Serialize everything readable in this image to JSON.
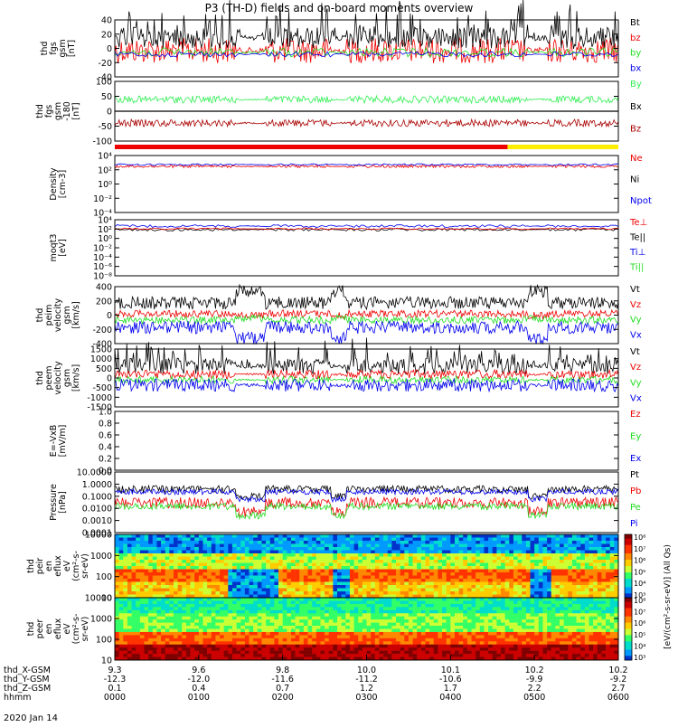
{
  "title": "P3 (TH-D) fields and on-board moments overview",
  "date_label": "2020 Jan 14",
  "colors": {
    "black": "#000000",
    "red": "#ee0000",
    "green": "#22dd22",
    "blue": "#0000ee",
    "dark_red": "#aa0000",
    "bright_green": "#33ee55",
    "yellow": "#ffee00"
  },
  "chart_data": [
    {
      "type": "line",
      "id": "fgs",
      "ylabel": [
        "thd",
        "fgs",
        "gsm",
        "[nT]"
      ],
      "ylim": [
        -40,
        40
      ],
      "yticks": [
        "40",
        "20",
        "0",
        "-20",
        "-40"
      ],
      "series": [
        {
          "name": "Bt",
          "color": "#000000"
        },
        {
          "name": "bz",
          "color": "#ee0000"
        },
        {
          "name": "by",
          "color": "#22dd22"
        },
        {
          "name": "bx",
          "color": "#0000ee"
        }
      ]
    },
    {
      "type": "line",
      "id": "fgs_offset",
      "ylabel": [
        "thd",
        "fgs",
        "gsm",
        "-180",
        "[nT]"
      ],
      "ylim": [
        -140,
        100
      ],
      "yticks": [
        "100",
        "50",
        "0",
        "-50",
        "-100"
      ],
      "series": [
        {
          "name": "By",
          "color": "#33ee55"
        },
        {
          "name": "Bx",
          "color": "#000000"
        },
        {
          "name": "Bz",
          "color": "#aa0000"
        }
      ]
    },
    {
      "type": "line",
      "id": "density",
      "ylabel": [
        "Density",
        "[cm-3]"
      ],
      "ylim_log": [
        -4,
        4
      ],
      "yticks": [
        "10⁴",
        "10²",
        "10⁰",
        "10⁻²",
        "10⁻⁴"
      ],
      "series": [
        {
          "name": "Ne",
          "color": "#ee0000"
        },
        {
          "name": "Ni",
          "color": "#000000"
        },
        {
          "name": "Npot",
          "color": "#0000ee"
        }
      ]
    },
    {
      "type": "line",
      "id": "temperature",
      "ylabel": [
        "moqt3",
        "[eV]"
      ],
      "ylim_log": [
        -8,
        4
      ],
      "yticks": [
        "10⁴",
        "10²",
        "10⁰",
        "10⁻²",
        "10⁻⁴",
        "10⁻⁶",
        "10⁻⁸"
      ],
      "series": [
        {
          "name": "Te⊥",
          "color": "#ee0000"
        },
        {
          "name": "Te||",
          "color": "#000000"
        },
        {
          "name": "Ti⊥",
          "color": "#0000ee"
        },
        {
          "name": "Ti||",
          "color": "#22dd22"
        }
      ]
    },
    {
      "type": "line",
      "id": "peim_velocity",
      "ylabel": [
        "thd",
        "peim",
        "velocity",
        "gsm",
        "[km/s]"
      ],
      "ylim": [
        -400,
        400
      ],
      "yticks": [
        "400",
        "200",
        "0",
        "-200",
        "-400"
      ],
      "series": [
        {
          "name": "Vt",
          "color": "#000000"
        },
        {
          "name": "Vz",
          "color": "#ee0000"
        },
        {
          "name": "Vy",
          "color": "#22dd22"
        },
        {
          "name": "Vx",
          "color": "#0000ee"
        }
      ]
    },
    {
      "type": "line",
      "id": "peem_velocity",
      "ylabel": [
        "thd",
        "peem",
        "velocity",
        "gsm",
        "[km/s]"
      ],
      "ylim": [
        -1500,
        1500
      ],
      "yticks": [
        "1500",
        "1000",
        "500",
        "0",
        "-500",
        "-1000",
        "-1500"
      ],
      "series": [
        {
          "name": "Vt",
          "color": "#000000"
        },
        {
          "name": "Vz",
          "color": "#ee0000"
        },
        {
          "name": "Vy",
          "color": "#22dd22"
        },
        {
          "name": "Vx",
          "color": "#0000ee"
        }
      ]
    },
    {
      "type": "line",
      "id": "efield",
      "ylabel": [
        "E=-VxB",
        "[mV/m]"
      ],
      "ylim": [
        0,
        1
      ],
      "yticks": [
        "1.0",
        "0.8",
        "0.6",
        "0.4",
        "0.2",
        "0.0"
      ],
      "series": [
        {
          "name": "Ez",
          "color": "#ee0000"
        },
        {
          "name": "Ey",
          "color": "#22dd22"
        },
        {
          "name": "Ex",
          "color": "#0000ee"
        }
      ]
    },
    {
      "type": "line",
      "id": "pressure",
      "ylabel": [
        "Pressure",
        "[nPa]"
      ],
      "ylim_log": [
        -4,
        1
      ],
      "yticks": [
        "10.0000",
        "1.0000",
        "0.1000",
        "0.0100",
        "0.0010",
        "0.0001"
      ],
      "series": [
        {
          "name": "Pt",
          "color": "#000000"
        },
        {
          "name": "Pb",
          "color": "#ee0000"
        },
        {
          "name": "Pe",
          "color": "#22dd22"
        },
        {
          "name": "Pi",
          "color": "#0000ee"
        }
      ]
    },
    {
      "type": "heatmap",
      "id": "peir_eflux",
      "ylabel": [
        "thd",
        "peir",
        "en",
        "eflux",
        "eV",
        "(cm²-s-",
        "sr-eV)"
      ],
      "yticks": [
        "10000",
        "1000",
        "100",
        "10"
      ],
      "colorbar_ticks": [
        "10⁸",
        "10⁷",
        "10⁶",
        "10⁵",
        "10⁴",
        "10³"
      ]
    },
    {
      "type": "heatmap",
      "id": "peer_eflux",
      "ylabel": [
        "thd",
        "peer",
        "en",
        "eflux",
        "eV",
        "(cm²-s-",
        "sr-eV)"
      ],
      "yticks": [
        "10000",
        "1000",
        "100",
        "10"
      ],
      "colorbar_ticks": [
        "10⁸",
        "10⁷",
        "10⁶",
        "10⁵",
        "10⁴",
        "10³"
      ]
    }
  ],
  "colorbar_label": "[eV/(cm²-s-sr-eV)] (All Qs)",
  "x_axis": {
    "rows": [
      {
        "label": "thd_X-GSM",
        "values": [
          "9.3",
          "9.6",
          "9.8",
          "10.0",
          "10.1",
          "10.2",
          "10.2"
        ]
      },
      {
        "label": "thd_Y-GSM",
        "values": [
          "-12.3",
          "-12.0",
          "-11.6",
          "-11.2",
          "-10.6",
          "-9.9",
          "-9.2"
        ]
      },
      {
        "label": "thd_Z-GSM",
        "values": [
          "0.1",
          "0.4",
          "0.7",
          "1.2",
          "1.7",
          "2.2",
          "2.7"
        ]
      },
      {
        "label": "hhmm",
        "values": [
          "0000",
          "0100",
          "0200",
          "0300",
          "0400",
          "0500",
          "0600"
        ]
      }
    ]
  }
}
